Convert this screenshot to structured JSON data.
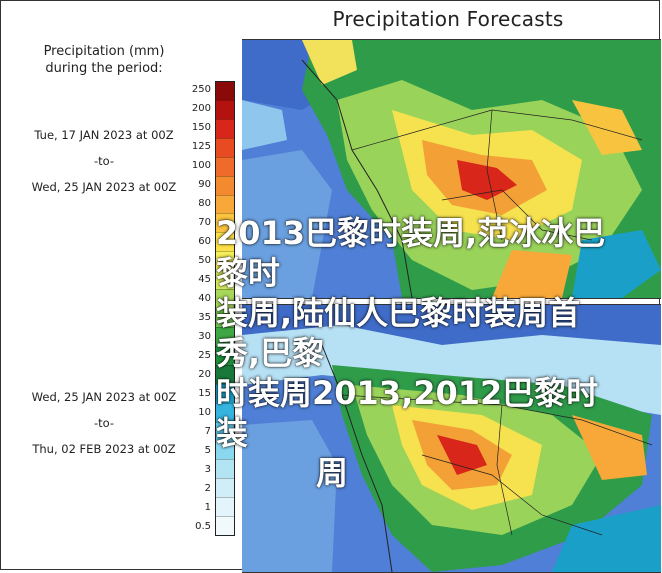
{
  "header": {
    "title": "Precipitation Forecasts"
  },
  "legend": {
    "heading_line1": "Precipitation (mm)",
    "heading_line2": "during the period:",
    "period1": {
      "start": "Tue, 17 JAN 2023 at 00Z",
      "sep": "-to-",
      "end": "Wed, 25 JAN 2023 at 00Z"
    },
    "period2": {
      "start": "Wed, 25 JAN 2023 at 00Z",
      "sep": "-to-",
      "end": "Thu, 02 FEB 2023 at 00Z"
    },
    "ticks": [
      "250",
      "200",
      "150",
      "125",
      "100",
      "90",
      "80",
      "70",
      "60",
      "50",
      "45",
      "40",
      "35",
      "30",
      "25",
      "20",
      "15",
      "10",
      "7",
      "5",
      "3",
      "2",
      "1",
      "0.5"
    ],
    "colors": [
      "#8a0a0a",
      "#b3120f",
      "#d8261a",
      "#e84a22",
      "#f06a2a",
      "#f48a30",
      "#f8a838",
      "#fbc43f",
      "#fde049",
      "#f6ef5a",
      "#d9ea5f",
      "#a8d85a",
      "#6fc14e",
      "#3ea844",
      "#1f8f3b",
      "#18793a",
      "#1aa0c8",
      "#36b4e0",
      "#5ec8ea",
      "#8ad8f0",
      "#b2e4f4",
      "#cfeef8",
      "#e3f4fa",
      "#f2f9fc"
    ]
  },
  "overlay": {
    "line1": "2013巴黎时装周,范冰冰巴黎时",
    "line2": "装周,陆仙人巴黎时装周首秀,巴黎",
    "line3": "时装周2013,2012巴黎时装",
    "line4": "周"
  }
}
